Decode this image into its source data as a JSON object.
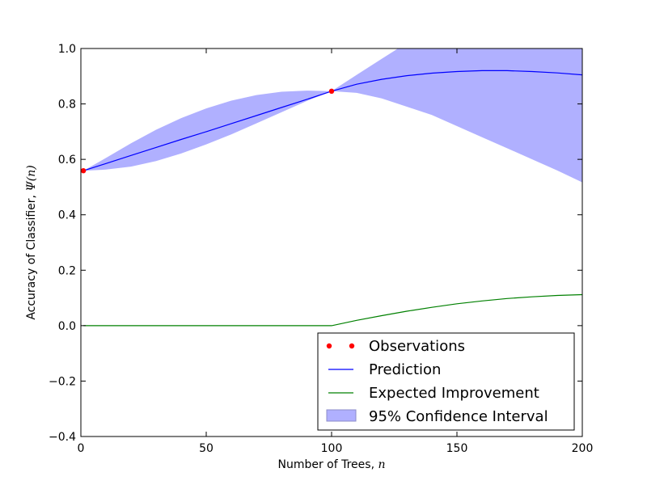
{
  "chart_data": {
    "type": "line",
    "xlabel": "Number of Trees, ",
    "xlabel_var": "n",
    "ylabel": "Accuracy of Classifier, ",
    "ylabel_var": "Ψ(n)",
    "xlim": [
      0,
      200
    ],
    "ylim": [
      -0.4,
      1.0
    ],
    "xticks": [
      0,
      50,
      100,
      150,
      200
    ],
    "yticks": [
      -0.4,
      -0.2,
      0.0,
      0.2,
      0.4,
      0.6,
      0.8,
      1.0
    ],
    "grid": false,
    "legend_position": "lower-right",
    "observations": {
      "name": "Observations",
      "color": "#ff0000",
      "x": [
        1,
        100
      ],
      "y": [
        0.559,
        0.846
      ]
    },
    "prediction": {
      "name": "Prediction",
      "color": "#0000ff",
      "x": [
        1,
        10,
        20,
        30,
        40,
        50,
        60,
        70,
        80,
        90,
        100,
        110,
        120,
        130,
        140,
        150,
        160,
        170,
        180,
        190,
        200
      ],
      "y": [
        0.559,
        0.585,
        0.614,
        0.643,
        0.672,
        0.7,
        0.729,
        0.758,
        0.787,
        0.816,
        0.846,
        0.871,
        0.889,
        0.902,
        0.911,
        0.917,
        0.92,
        0.92,
        0.917,
        0.912,
        0.905
      ]
    },
    "expected_improvement": {
      "name": "Expected Improvement",
      "color": "#008000",
      "x": [
        1,
        100,
        110,
        120,
        130,
        140,
        150,
        160,
        170,
        180,
        190,
        200
      ],
      "y": [
        0.0,
        0.0,
        0.019,
        0.036,
        0.052,
        0.066,
        0.079,
        0.089,
        0.098,
        0.104,
        0.109,
        0.112
      ]
    },
    "confidence_interval": {
      "name": "95% Confidence Interval",
      "color": "#b0b0ff",
      "x": [
        1,
        10,
        20,
        30,
        40,
        50,
        60,
        70,
        80,
        90,
        100,
        110,
        120,
        130,
        140,
        150,
        160,
        170,
        180,
        190,
        200
      ],
      "upper": [
        0.559,
        0.605,
        0.658,
        0.707,
        0.749,
        0.784,
        0.812,
        0.832,
        0.844,
        0.848,
        0.846,
        0.905,
        0.963,
        1.02,
        1.07,
        1.12,
        1.17,
        1.22,
        1.26,
        1.3,
        1.33
      ],
      "lower": [
        0.559,
        0.563,
        0.574,
        0.594,
        0.621,
        0.654,
        0.69,
        0.73,
        0.77,
        0.81,
        0.846,
        0.84,
        0.82,
        0.79,
        0.76,
        0.72,
        0.68,
        0.64,
        0.6,
        0.56,
        0.517
      ]
    }
  }
}
